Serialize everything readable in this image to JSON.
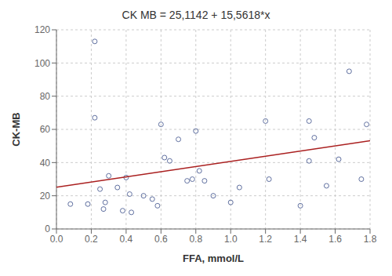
{
  "chart_data": {
    "type": "scatter",
    "title": "CK MB = 25,1142 + 15,5618*x",
    "x_label": "FFA, mmol/L",
    "y_label": "CK-MB",
    "xlim": [
      0.0,
      1.8
    ],
    "ylim": [
      0,
      120
    ],
    "xticks": [
      {
        "value": 0.0,
        "label": "0.0"
      },
      {
        "value": 0.2,
        "label": "0.2"
      },
      {
        "value": 0.4,
        "label": "0.4"
      },
      {
        "value": 0.6,
        "label": "0.6"
      },
      {
        "value": 0.8,
        "label": "0.8"
      },
      {
        "value": 1.0,
        "label": "1.0"
      },
      {
        "value": 1.2,
        "label": "1.2"
      },
      {
        "value": 1.4,
        "label": "1.4"
      },
      {
        "value": 1.6,
        "label": "1.6"
      },
      {
        "value": 1.8,
        "label": "1.8"
      }
    ],
    "yticks": [
      0,
      20,
      40,
      60,
      80,
      100,
      120
    ],
    "grid": true,
    "series": [
      {
        "type": "scatter",
        "color": "#6070a0",
        "marker": "open_circle",
        "x": [
          0.08,
          0.18,
          0.22,
          0.22,
          0.25,
          0.27,
          0.28,
          0.3,
          0.35,
          0.38,
          0.4,
          0.42,
          0.43,
          0.5,
          0.55,
          0.58,
          0.6,
          0.62,
          0.65,
          0.7,
          0.75,
          0.78,
          0.8,
          0.82,
          0.85,
          0.9,
          1.0,
          1.05,
          1.2,
          1.22,
          1.4,
          1.45,
          1.45,
          1.48,
          1.55,
          1.62,
          1.68,
          1.75,
          1.78
        ],
        "values": [
          15,
          15,
          113,
          67,
          24,
          12,
          16,
          32,
          25,
          11,
          31,
          21,
          10,
          20,
          18,
          14,
          63,
          43,
          41,
          54,
          29,
          30,
          59,
          35,
          29,
          20,
          16,
          25,
          65,
          30,
          14,
          41,
          65,
          55,
          26,
          42,
          95,
          30,
          63
        ]
      },
      {
        "type": "line",
        "color": "#aa2020",
        "line_style": "solid",
        "x": [
          0.0,
          1.8
        ],
        "values": [
          25.1142,
          53.12544
        ]
      }
    ]
  }
}
